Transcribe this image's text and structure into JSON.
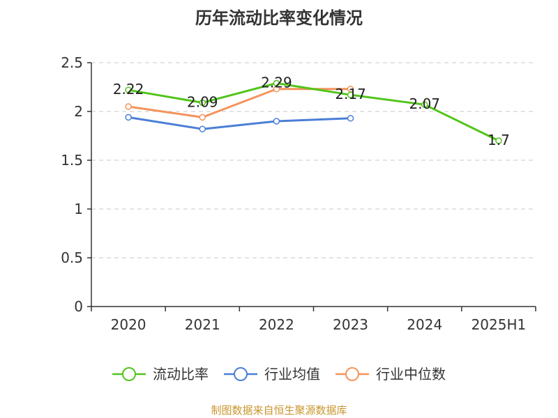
{
  "chart_data": {
    "type": "line",
    "title": "历年流动比率变化情况",
    "categories": [
      "2020",
      "2021",
      "2022",
      "2023",
      "2024",
      "2025H1"
    ],
    "ylim": [
      0,
      2.5
    ],
    "yticks": [
      "0",
      "0.5",
      "1",
      "1.5",
      "2",
      "2.5"
    ],
    "grid": true,
    "legend_position": "bottom",
    "series": [
      {
        "name": "流动比率",
        "color": "#52c41a",
        "values": [
          2.22,
          2.09,
          2.29,
          2.17,
          2.07,
          1.7
        ],
        "labels": [
          "2.22",
          "2.09",
          "2.29",
          "2.17",
          "2.07",
          "1.7"
        ]
      },
      {
        "name": "行业均值",
        "color": "#4a7fd6",
        "values": [
          1.94,
          1.82,
          1.9,
          1.93,
          null,
          null
        ]
      },
      {
        "name": "行业中位数",
        "color": "#f4935a",
        "values": [
          2.05,
          1.94,
          2.23,
          2.23,
          null,
          null
        ]
      }
    ]
  },
  "footer": {
    "source": "制图数据来自恒生聚源数据库",
    "source_color": "#c8962f"
  }
}
